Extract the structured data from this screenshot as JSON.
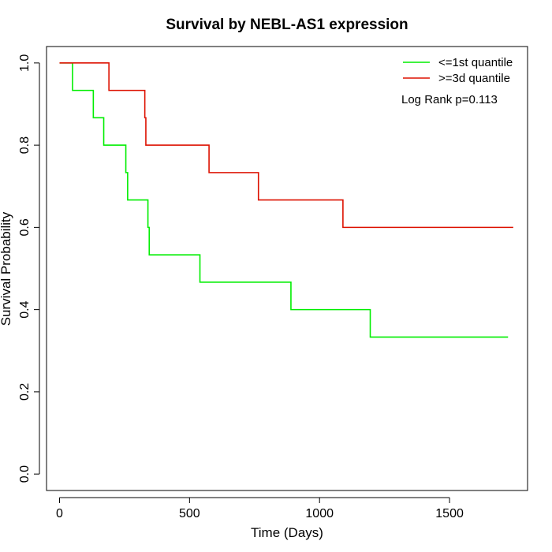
{
  "chart_data": {
    "type": "line",
    "title": "Survival by NEBL-AS1 expression",
    "xlabel": "Time (Days)",
    "ylabel": "Survival Probability",
    "xlim": [
      -50,
      1800
    ],
    "ylim": [
      -0.04,
      1.04
    ],
    "xticks": [
      0,
      500,
      1000,
      1500
    ],
    "yticks": [
      0.0,
      0.2,
      0.4,
      0.6,
      0.8,
      1.0
    ],
    "xtick_labels": [
      "0",
      "500",
      "1000",
      "1500"
    ],
    "ytick_labels": [
      "0.0",
      "0.2",
      "0.4",
      "0.6",
      "0.8",
      "1.0"
    ],
    "legend_position": "top-right",
    "annotation": "Log Rank p=0.113",
    "series": [
      {
        "name": "<=1st quantile",
        "color": "#00ee00",
        "steps": [
          [
            0,
            1.0
          ],
          [
            50,
            0.9333
          ],
          [
            130,
            0.8667
          ],
          [
            170,
            0.8
          ],
          [
            255,
            0.7333
          ],
          [
            262,
            0.6667
          ],
          [
            340,
            0.6
          ],
          [
            345,
            0.5333
          ],
          [
            540,
            0.4667
          ],
          [
            890,
            0.4
          ],
          [
            1195,
            0.3333
          ],
          [
            1725,
            0.3333
          ]
        ]
      },
      {
        "name": ">=3d quantile",
        "color": "#dd1100",
        "steps": [
          [
            0,
            1.0
          ],
          [
            190,
            0.9333
          ],
          [
            328,
            0.8667
          ],
          [
            332,
            0.8
          ],
          [
            575,
            0.7333
          ],
          [
            765,
            0.6667
          ],
          [
            1090,
            0.6
          ],
          [
            1745,
            0.6
          ]
        ]
      }
    ]
  }
}
